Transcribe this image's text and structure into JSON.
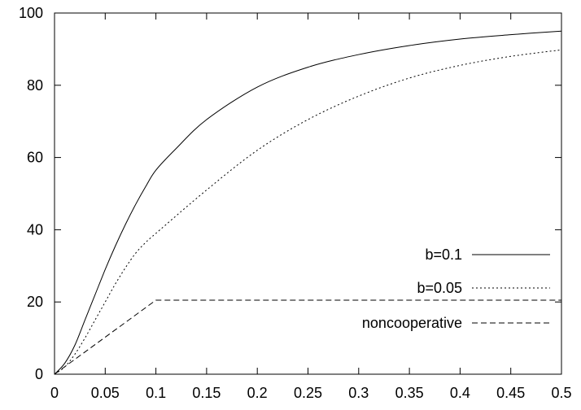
{
  "chart_data": {
    "type": "line",
    "title": "",
    "xlabel": "",
    "ylabel": "",
    "xlim": [
      0,
      0.5
    ],
    "ylim": [
      0,
      100
    ],
    "x_ticks": [
      0,
      0.05,
      0.1,
      0.15,
      0.2,
      0.25,
      0.3,
      0.35,
      0.4,
      0.45,
      0.5
    ],
    "x_tick_labels": [
      "0",
      "0.05",
      "0.1",
      "0.15",
      "0.2",
      "0.25",
      "0.3",
      "0.35",
      "0.4",
      "0.45",
      "0.5"
    ],
    "y_ticks": [
      0,
      20,
      40,
      60,
      80,
      100
    ],
    "y_tick_labels": [
      "0",
      "20",
      "40",
      "60",
      "80",
      "100"
    ],
    "grid": false,
    "legend_position": "bottom-right",
    "series": [
      {
        "name": "b=0.1",
        "dash": "solid",
        "color": "#000000",
        "x": [
          0,
          0.01,
          0.02,
          0.03,
          0.04,
          0.05,
          0.06,
          0.07,
          0.08,
          0.09,
          0.1,
          0.12,
          0.15,
          0.2,
          0.25,
          0.3,
          0.35,
          0.4,
          0.45,
          0.5
        ],
        "y": [
          0,
          3,
          8,
          15,
          22,
          29,
          35.5,
          41.5,
          47,
          52,
          56.5,
          62.5,
          70.5,
          79.5,
          85,
          88.5,
          91,
          92.8,
          94,
          95
        ]
      },
      {
        "name": "b=0.05",
        "dash": "dotted",
        "color": "#000000",
        "x": [
          0,
          0.01,
          0.02,
          0.03,
          0.04,
          0.05,
          0.06,
          0.07,
          0.08,
          0.09,
          0.1,
          0.15,
          0.2,
          0.25,
          0.3,
          0.35,
          0.4,
          0.45,
          0.5
        ],
        "y": [
          0,
          2,
          5.5,
          10,
          15,
          20,
          25,
          29.5,
          33.5,
          36.5,
          39,
          51,
          62,
          70.5,
          77,
          82,
          85.5,
          88,
          89.8
        ]
      },
      {
        "name": "noncooperative",
        "dash": "dashed",
        "color": "#000000",
        "x": [
          0,
          0.1,
          0.5
        ],
        "y": [
          0,
          20.5,
          20.5
        ]
      }
    ]
  }
}
